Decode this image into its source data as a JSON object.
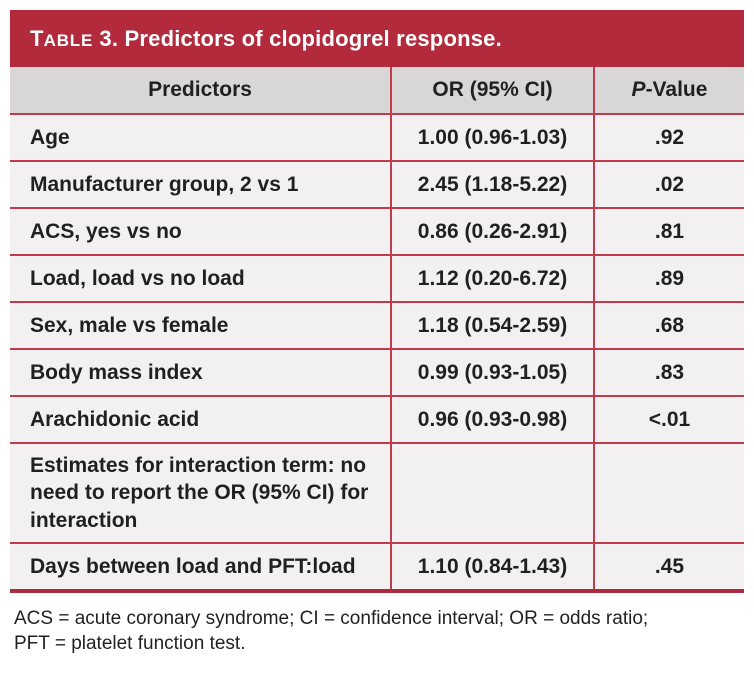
{
  "table": {
    "title": {
      "prefix_initial": "T",
      "prefix_small": "ABLE",
      "rest": " 3. Predictors of clopidogrel response."
    },
    "header": {
      "predictors": "Predictors",
      "or": "OR (95% CI)",
      "p_italic": "P",
      "p_rest": "-Value"
    },
    "rows": [
      {
        "predictor": "Age",
        "or": "1.00 (0.96-1.03)",
        "p": ".92"
      },
      {
        "predictor": "Manufacturer group, 2 vs 1",
        "or": "2.45 (1.18-5.22)",
        "p": ".02"
      },
      {
        "predictor": "ACS, yes vs no",
        "or": "0.86 (0.26-2.91)",
        "p": ".81"
      },
      {
        "predictor": "Load, load vs no load",
        "or": "1.12 (0.20-6.72)",
        "p": ".89"
      },
      {
        "predictor": "Sex, male vs female",
        "or": "1.18 (0.54-2.59)",
        "p": ".68"
      },
      {
        "predictor": "Body mass index",
        "or": "0.99 (0.93-1.05)",
        "p": ".83"
      },
      {
        "predictor": "Arachidonic acid",
        "or": "0.96 (0.93-0.98)",
        "p": "<.01"
      },
      {
        "predictor": "Estimates for interaction term: no need to report the OR (95% CI) for interaction",
        "or": "",
        "p": ""
      },
      {
        "predictor": "Days between load and PFT:load",
        "or": "1.10 (0.84-1.43)",
        "p": ".45"
      }
    ],
    "footnote": "ACS = acute coronary syndrome; CI = confidence interval; OR = odds ratio; PFT = platelet function test."
  },
  "colors": {
    "title_bar": "#b22a3b",
    "grid_line": "#c23b4d",
    "bottom_border": "#ab2c41",
    "header_row_bg": "#d8d6d7",
    "row_bg": "#f2f0f0",
    "text": "#221f20",
    "title_text": "#ffffff"
  }
}
